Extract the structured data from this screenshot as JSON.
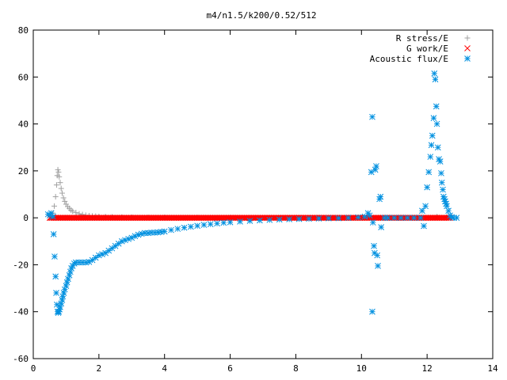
{
  "chart_data": {
    "type": "scatter",
    "title": "m4/n1.5/k200/0.52/512",
    "xlabel": "",
    "ylabel": "",
    "xlim": [
      0,
      14
    ],
    "ylim": [
      -60,
      80
    ],
    "x_ticks": [
      "0",
      "2",
      "4",
      "6",
      "8",
      "10",
      "12",
      "14"
    ],
    "y_ticks": [
      "-60",
      "-40",
      "-20",
      "0",
      "20",
      "40",
      "60",
      "80"
    ],
    "grid": false,
    "legend_position": "top-right",
    "series": [
      {
        "name": "R stress/E",
        "marker": "plus",
        "color": "#a0a0a0",
        "points": [
          [
            0.55,
            0.5
          ],
          [
            0.6,
            2.0
          ],
          [
            0.64,
            5.0
          ],
          [
            0.68,
            9.0
          ],
          [
            0.71,
            14.0
          ],
          [
            0.73,
            18.0
          ],
          [
            0.75,
            20.5
          ],
          [
            0.77,
            19.5
          ],
          [
            0.79,
            17.5
          ],
          [
            0.82,
            15.0
          ],
          [
            0.85,
            12.5
          ],
          [
            0.88,
            10.5
          ],
          [
            0.92,
            8.5
          ],
          [
            0.96,
            7.0
          ],
          [
            1.0,
            5.8
          ],
          [
            1.05,
            4.8
          ],
          [
            1.1,
            4.0
          ],
          [
            1.15,
            3.3
          ],
          [
            1.2,
            2.8
          ],
          [
            1.3,
            2.2
          ],
          [
            1.4,
            1.7
          ],
          [
            1.5,
            1.4
          ],
          [
            1.6,
            1.1
          ],
          [
            1.7,
            0.9
          ],
          [
            1.8,
            0.8
          ],
          [
            1.9,
            0.7
          ],
          [
            2.0,
            0.6
          ],
          [
            2.2,
            0.5
          ],
          [
            2.4,
            0.4
          ],
          [
            2.7,
            0.3
          ],
          [
            3.0,
            0.25
          ],
          [
            3.5,
            0.2
          ],
          [
            4.0,
            0.15
          ],
          [
            5.0,
            0.1
          ],
          [
            6.0,
            0.08
          ],
          [
            8.0,
            0.05
          ],
          [
            10.0,
            0.03
          ],
          [
            12.3,
            0.5
          ],
          [
            12.6,
            0.3
          ]
        ]
      },
      {
        "name": "G work/E",
        "marker": "cross",
        "color": "#ff0000",
        "x_start": 0.5,
        "x_end": 12.7,
        "y_value": 0,
        "count": 330
      },
      {
        "name": "Acoustic flux/E",
        "marker": "star",
        "color": "#0090e0",
        "points": [
          [
            0.45,
            1.5
          ],
          [
            0.5,
            1.0
          ],
          [
            0.55,
            2.0
          ],
          [
            0.6,
            0.5
          ],
          [
            0.62,
            -7.0
          ],
          [
            0.65,
            -16.5
          ],
          [
            0.68,
            -25.0
          ],
          [
            0.7,
            -32.0
          ],
          [
            0.72,
            -37.0
          ],
          [
            0.74,
            -40.0
          ],
          [
            0.76,
            -40.5
          ],
          [
            0.78,
            -40.0
          ],
          [
            0.8,
            -39.0
          ],
          [
            0.82,
            -38.0
          ],
          [
            0.85,
            -36.5
          ],
          [
            0.88,
            -35.0
          ],
          [
            0.9,
            -33.5
          ],
          [
            0.93,
            -32.0
          ],
          [
            0.96,
            -30.5
          ],
          [
            1.0,
            -29.0
          ],
          [
            1.03,
            -27.5
          ],
          [
            1.06,
            -26.0
          ],
          [
            1.1,
            -24.5
          ],
          [
            1.13,
            -23.0
          ],
          [
            1.16,
            -21.5
          ],
          [
            1.2,
            -20.5
          ],
          [
            1.25,
            -19.5
          ],
          [
            1.3,
            -19.0
          ],
          [
            1.4,
            -19.0
          ],
          [
            1.5,
            -19.0
          ],
          [
            1.6,
            -19.0
          ],
          [
            1.7,
            -18.8
          ],
          [
            1.8,
            -18.0
          ],
          [
            1.9,
            -17.0
          ],
          [
            2.0,
            -16.0
          ],
          [
            2.1,
            -15.5
          ],
          [
            2.2,
            -15.0
          ],
          [
            2.3,
            -14.0
          ],
          [
            2.4,
            -13.0
          ],
          [
            2.5,
            -12.0
          ],
          [
            2.6,
            -11.0
          ],
          [
            2.7,
            -10.0
          ],
          [
            2.8,
            -9.5
          ],
          [
            2.9,
            -9.0
          ],
          [
            3.0,
            -8.5
          ],
          [
            3.1,
            -7.8
          ],
          [
            3.2,
            -7.2
          ],
          [
            3.3,
            -6.8
          ],
          [
            3.4,
            -6.5
          ],
          [
            3.5,
            -6.5
          ],
          [
            3.6,
            -6.3
          ],
          [
            3.7,
            -6.3
          ],
          [
            3.8,
            -6.2
          ],
          [
            3.9,
            -6.0
          ],
          [
            4.0,
            -5.8
          ],
          [
            4.2,
            -5.2
          ],
          [
            4.4,
            -4.7
          ],
          [
            4.6,
            -4.2
          ],
          [
            4.8,
            -3.8
          ],
          [
            5.0,
            -3.4
          ],
          [
            5.2,
            -3.0
          ],
          [
            5.4,
            -2.7
          ],
          [
            5.6,
            -2.4
          ],
          [
            5.8,
            -2.1
          ],
          [
            6.0,
            -1.9
          ],
          [
            6.3,
            -1.6
          ],
          [
            6.6,
            -1.3
          ],
          [
            6.9,
            -1.1
          ],
          [
            7.2,
            -0.9
          ],
          [
            7.5,
            -0.7
          ],
          [
            7.8,
            -0.6
          ],
          [
            8.1,
            -0.5
          ],
          [
            8.4,
            -0.4
          ],
          [
            8.7,
            -0.3
          ],
          [
            9.0,
            -0.2
          ],
          [
            9.3,
            -0.15
          ],
          [
            9.6,
            0.0
          ],
          [
            9.9,
            0.2
          ],
          [
            10.1,
            0.5
          ],
          [
            10.2,
            2.0
          ],
          [
            10.25,
            1.0
          ],
          [
            10.3,
            19.5
          ],
          [
            10.33,
            43.0
          ],
          [
            10.35,
            -2.0
          ],
          [
            10.38,
            -12.0
          ],
          [
            10.4,
            -15.0
          ],
          [
            10.42,
            20.5
          ],
          [
            10.45,
            22.0
          ],
          [
            10.48,
            -16.0
          ],
          [
            10.5,
            -20.5
          ],
          [
            10.55,
            8.0
          ],
          [
            10.58,
            9.0
          ],
          [
            10.6,
            -4.0
          ],
          [
            10.7,
            0.0
          ],
          [
            10.8,
            0.0
          ],
          [
            11.0,
            0.0
          ],
          [
            11.2,
            0.0
          ],
          [
            11.4,
            0.0
          ],
          [
            11.6,
            0.0
          ],
          [
            11.8,
            0.0
          ],
          [
            11.85,
            3.0
          ],
          [
            11.9,
            -3.5
          ],
          [
            11.95,
            5.0
          ],
          [
            12.0,
            13.0
          ],
          [
            12.05,
            19.5
          ],
          [
            12.1,
            26.0
          ],
          [
            12.13,
            31.0
          ],
          [
            12.16,
            35.0
          ],
          [
            12.2,
            42.5
          ],
          [
            12.22,
            61.5
          ],
          [
            12.25,
            59.0
          ],
          [
            12.28,
            47.5
          ],
          [
            12.3,
            40.0
          ],
          [
            12.33,
            30.0
          ],
          [
            12.36,
            25.0
          ],
          [
            12.4,
            24.0
          ],
          [
            12.43,
            19.0
          ],
          [
            12.45,
            15.0
          ],
          [
            12.48,
            12.0
          ],
          [
            12.5,
            9.0
          ],
          [
            12.53,
            8.0
          ],
          [
            12.55,
            7.0
          ],
          [
            12.58,
            6.0
          ],
          [
            12.6,
            5.0
          ],
          [
            12.65,
            3.0
          ],
          [
            12.7,
            1.0
          ],
          [
            12.75,
            0.3
          ],
          [
            12.8,
            0.0
          ],
          [
            12.9,
            0.0
          ],
          [
            10.33,
            -40.0
          ]
        ]
      }
    ]
  }
}
